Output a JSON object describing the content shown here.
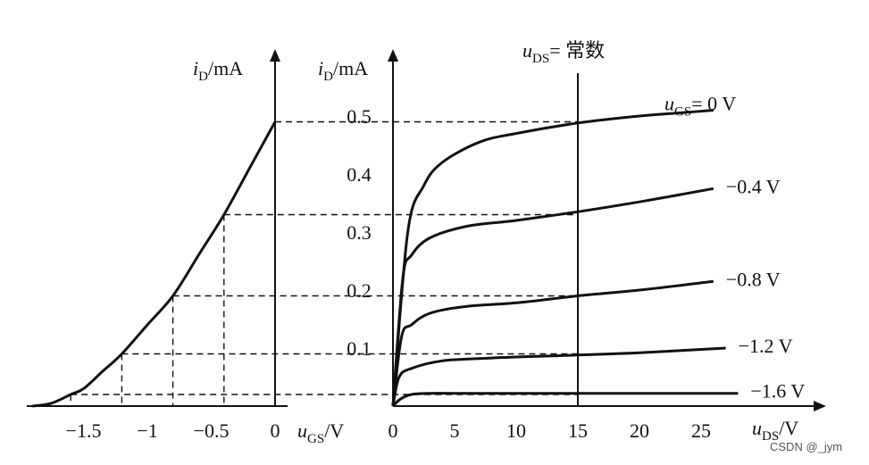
{
  "chart_data": [
    {
      "type": "line",
      "name": "transfer-characteristic",
      "xlabel": {
        "main": "u",
        "sub": "GS",
        "unit": "/V"
      },
      "ylabel": {
        "main": "i",
        "sub": "D",
        "unit": "/mA"
      },
      "xlim": [
        -1.9,
        0
      ],
      "ylim": [
        0,
        0.55
      ],
      "x_ticks": [
        -1.5,
        -1,
        -0.5,
        0
      ],
      "x_tick_labels": [
        "−1.5",
        "−1",
        "−0.5",
        "0"
      ],
      "series": [
        {
          "x": [
            -1.9,
            -1.75,
            -1.6,
            -1.5,
            -1.35,
            -1.2,
            -1.0,
            -0.8,
            -0.6,
            -0.4,
            -0.2,
            0
          ],
          "y": [
            0,
            0.005,
            0.02,
            0.03,
            0.06,
            0.09,
            0.14,
            0.19,
            0.26,
            0.33,
            0.41,
            0.49
          ]
        }
      ],
      "reference_points": [
        {
          "x": -1.6,
          "y": 0.02
        },
        {
          "x": -1.2,
          "y": 0.09
        },
        {
          "x": -0.8,
          "y": 0.19
        },
        {
          "x": -0.4,
          "y": 0.33
        },
        {
          "x": 0,
          "y": 0.49
        }
      ]
    },
    {
      "type": "line",
      "name": "output-characteristics",
      "xlabel": {
        "main": "u",
        "sub": "DS",
        "unit": "/V"
      },
      "ylabel": {
        "main": "i",
        "sub": "D",
        "unit": "/mA"
      },
      "xlim": [
        0,
        29
      ],
      "ylim": [
        0,
        0.55
      ],
      "x_ticks": [
        0,
        5,
        10,
        15,
        20,
        25
      ],
      "x_tick_labels": [
        "0",
        "5",
        "10",
        "15",
        "20",
        "25"
      ],
      "y_ticks": [
        0.1,
        0.2,
        0.3,
        0.4,
        0.5
      ],
      "y_tick_labels": [
        "0.1",
        "0.2",
        "0.3",
        "0.4",
        "0.5"
      ],
      "constant_line": {
        "x": 15,
        "label_main": "u",
        "label_sub": "DS",
        "label_rest": "= 常数"
      },
      "series": [
        {
          "name": "0 V",
          "label_main": "u",
          "label_sub": "GS",
          "label_rest": "= 0 V",
          "x": [
            0,
            1.2,
            2.5,
            4,
            7,
            10,
            15,
            20,
            23,
            26
          ],
          "y": [
            0,
            0.3,
            0.38,
            0.42,
            0.455,
            0.47,
            0.488,
            0.5,
            0.505,
            0.51
          ]
        },
        {
          "name": "−0.4 V",
          "label_rest": "−0.4 V",
          "x": [
            0,
            0.8,
            1.5,
            3,
            6,
            10,
            15,
            20,
            26
          ],
          "y": [
            0,
            0.22,
            0.26,
            0.29,
            0.31,
            0.32,
            0.335,
            0.352,
            0.375
          ]
        },
        {
          "name": "−0.8 V",
          "label_rest": "−0.8 V",
          "x": [
            0,
            0.7,
            1.5,
            3,
            6,
            10,
            15,
            20,
            26
          ],
          "y": [
            0,
            0.12,
            0.14,
            0.16,
            0.172,
            0.178,
            0.19,
            0.2,
            0.215
          ]
        },
        {
          "name": "−1.2 V",
          "label_rest": "−1.2 V",
          "x": [
            0,
            0.5,
            1.5,
            4,
            8,
            12,
            15,
            20,
            27
          ],
          "y": [
            0,
            0.05,
            0.065,
            0.078,
            0.083,
            0.086,
            0.088,
            0.092,
            0.1
          ]
        },
        {
          "name": "−1.6 V",
          "label_rest": "−1.6 V",
          "x": [
            0,
            0.6,
            1.5,
            3,
            5,
            10,
            15,
            20,
            28
          ],
          "y": [
            0,
            0.012,
            0.02,
            0.022,
            0.022,
            0.022,
            0.022,
            0.022,
            0.022
          ]
        }
      ]
    }
  ],
  "watermark": "CSDN @_jym"
}
